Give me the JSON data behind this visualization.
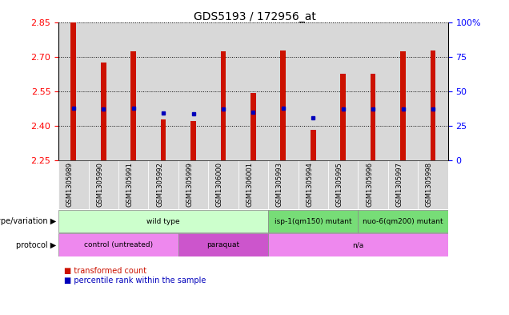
{
  "title": "GDS5193 / 172956_at",
  "samples": [
    "GSM1305989",
    "GSM1305990",
    "GSM1305991",
    "GSM1305992",
    "GSM1305999",
    "GSM1306000",
    "GSM1306001",
    "GSM1305993",
    "GSM1305994",
    "GSM1305995",
    "GSM1305996",
    "GSM1305997",
    "GSM1305998"
  ],
  "transformed_count": [
    2.848,
    2.675,
    2.725,
    2.43,
    2.42,
    2.725,
    2.543,
    2.727,
    2.385,
    2.625,
    2.625,
    2.725,
    2.727
  ],
  "percentile_rank_y": [
    2.478,
    2.473,
    2.478,
    2.455,
    2.452,
    2.475,
    2.458,
    2.476,
    2.435,
    2.473,
    2.472,
    2.472,
    2.475
  ],
  "ymin": 2.25,
  "ymax": 2.85,
  "y_ticks": [
    2.25,
    2.4,
    2.55,
    2.7,
    2.85
  ],
  "y2_ticks": [
    0,
    25,
    50,
    75,
    100
  ],
  "bar_color": "#cc1100",
  "dot_color": "#0000bb",
  "col_bg_color": "#d8d8d8",
  "genotype_groups": [
    {
      "label": "wild type",
      "start": 0,
      "end": 6,
      "color": "#ccffcc"
    },
    {
      "label": "isp-1(qm150) mutant",
      "start": 7,
      "end": 9,
      "color": "#77dd77"
    },
    {
      "label": "nuo-6(qm200) mutant",
      "start": 10,
      "end": 12,
      "color": "#77dd77"
    }
  ],
  "protocol_groups": [
    {
      "label": "control (untreated)",
      "start": 0,
      "end": 3,
      "color": "#ee88ee"
    },
    {
      "label": "paraquat",
      "start": 4,
      "end": 6,
      "color": "#cc55cc"
    },
    {
      "label": "n/a",
      "start": 7,
      "end": 12,
      "color": "#ee88ee"
    }
  ]
}
